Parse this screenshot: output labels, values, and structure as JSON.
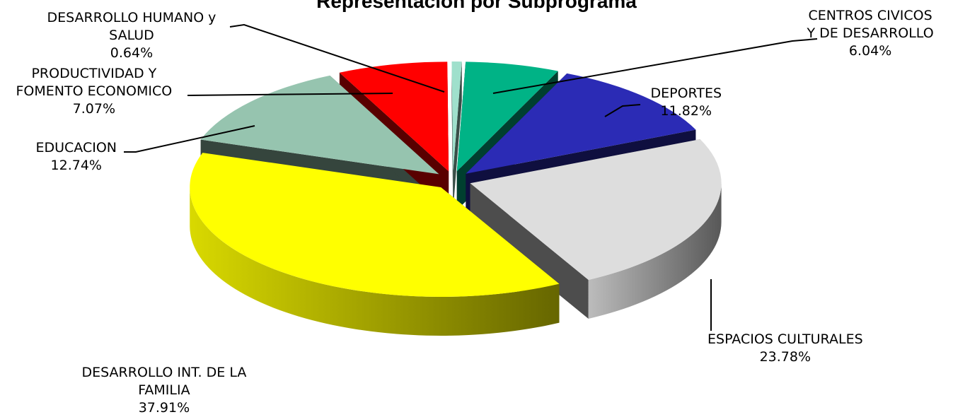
{
  "chart_data": {
    "type": "pie",
    "title": "Representación por Subprograma",
    "exploded": true,
    "three_d": true,
    "slices": [
      {
        "name": "CENTROS CIVICOS Y DE DESARROLLO",
        "label_lines": [
          "CENTROS CIVICOS",
          "Y DE DESARROLLO"
        ],
        "value": 6.04,
        "value_label": "6.04%",
        "color": "#00B386"
      },
      {
        "name": "DEPORTES",
        "label_lines": [
          "DEPORTES"
        ],
        "value": 11.82,
        "value_label": "11.82%",
        "color": "#2B2BB5"
      },
      {
        "name": "ESPACIOS CULTURALES",
        "label_lines": [
          "ESPACIOS CULTURALES"
        ],
        "value": 23.78,
        "value_label": "23.78%",
        "color": "#DDDDDD"
      },
      {
        "name": "DESARROLLO INT. DE LA FAMILIA",
        "label_lines": [
          "DESARROLLO INT. DE LA",
          "FAMILIA"
        ],
        "value": 37.91,
        "value_label": "37.91%",
        "color": "#FFFF00"
      },
      {
        "name": "EDUCACION",
        "label_lines": [
          "EDUCACION"
        ],
        "value": 12.74,
        "value_label": "12.74%",
        "color": "#96C4AF"
      },
      {
        "name": "PRODUCTIVIDAD Y FOMENTO ECONOMICO",
        "label_lines": [
          "PRODUCTIVIDAD Y",
          "FOMENTO ECONOMICO"
        ],
        "value": 7.07,
        "value_label": "7.07%",
        "color": "#FF0000"
      },
      {
        "name": "DESARROLLO HUMANO y SALUD",
        "label_lines": [
          "DESARROLLO HUMANO y",
          "SALUD"
        ],
        "value": 0.64,
        "value_label": "0.64%",
        "color": "#9FE0CC"
      }
    ]
  }
}
